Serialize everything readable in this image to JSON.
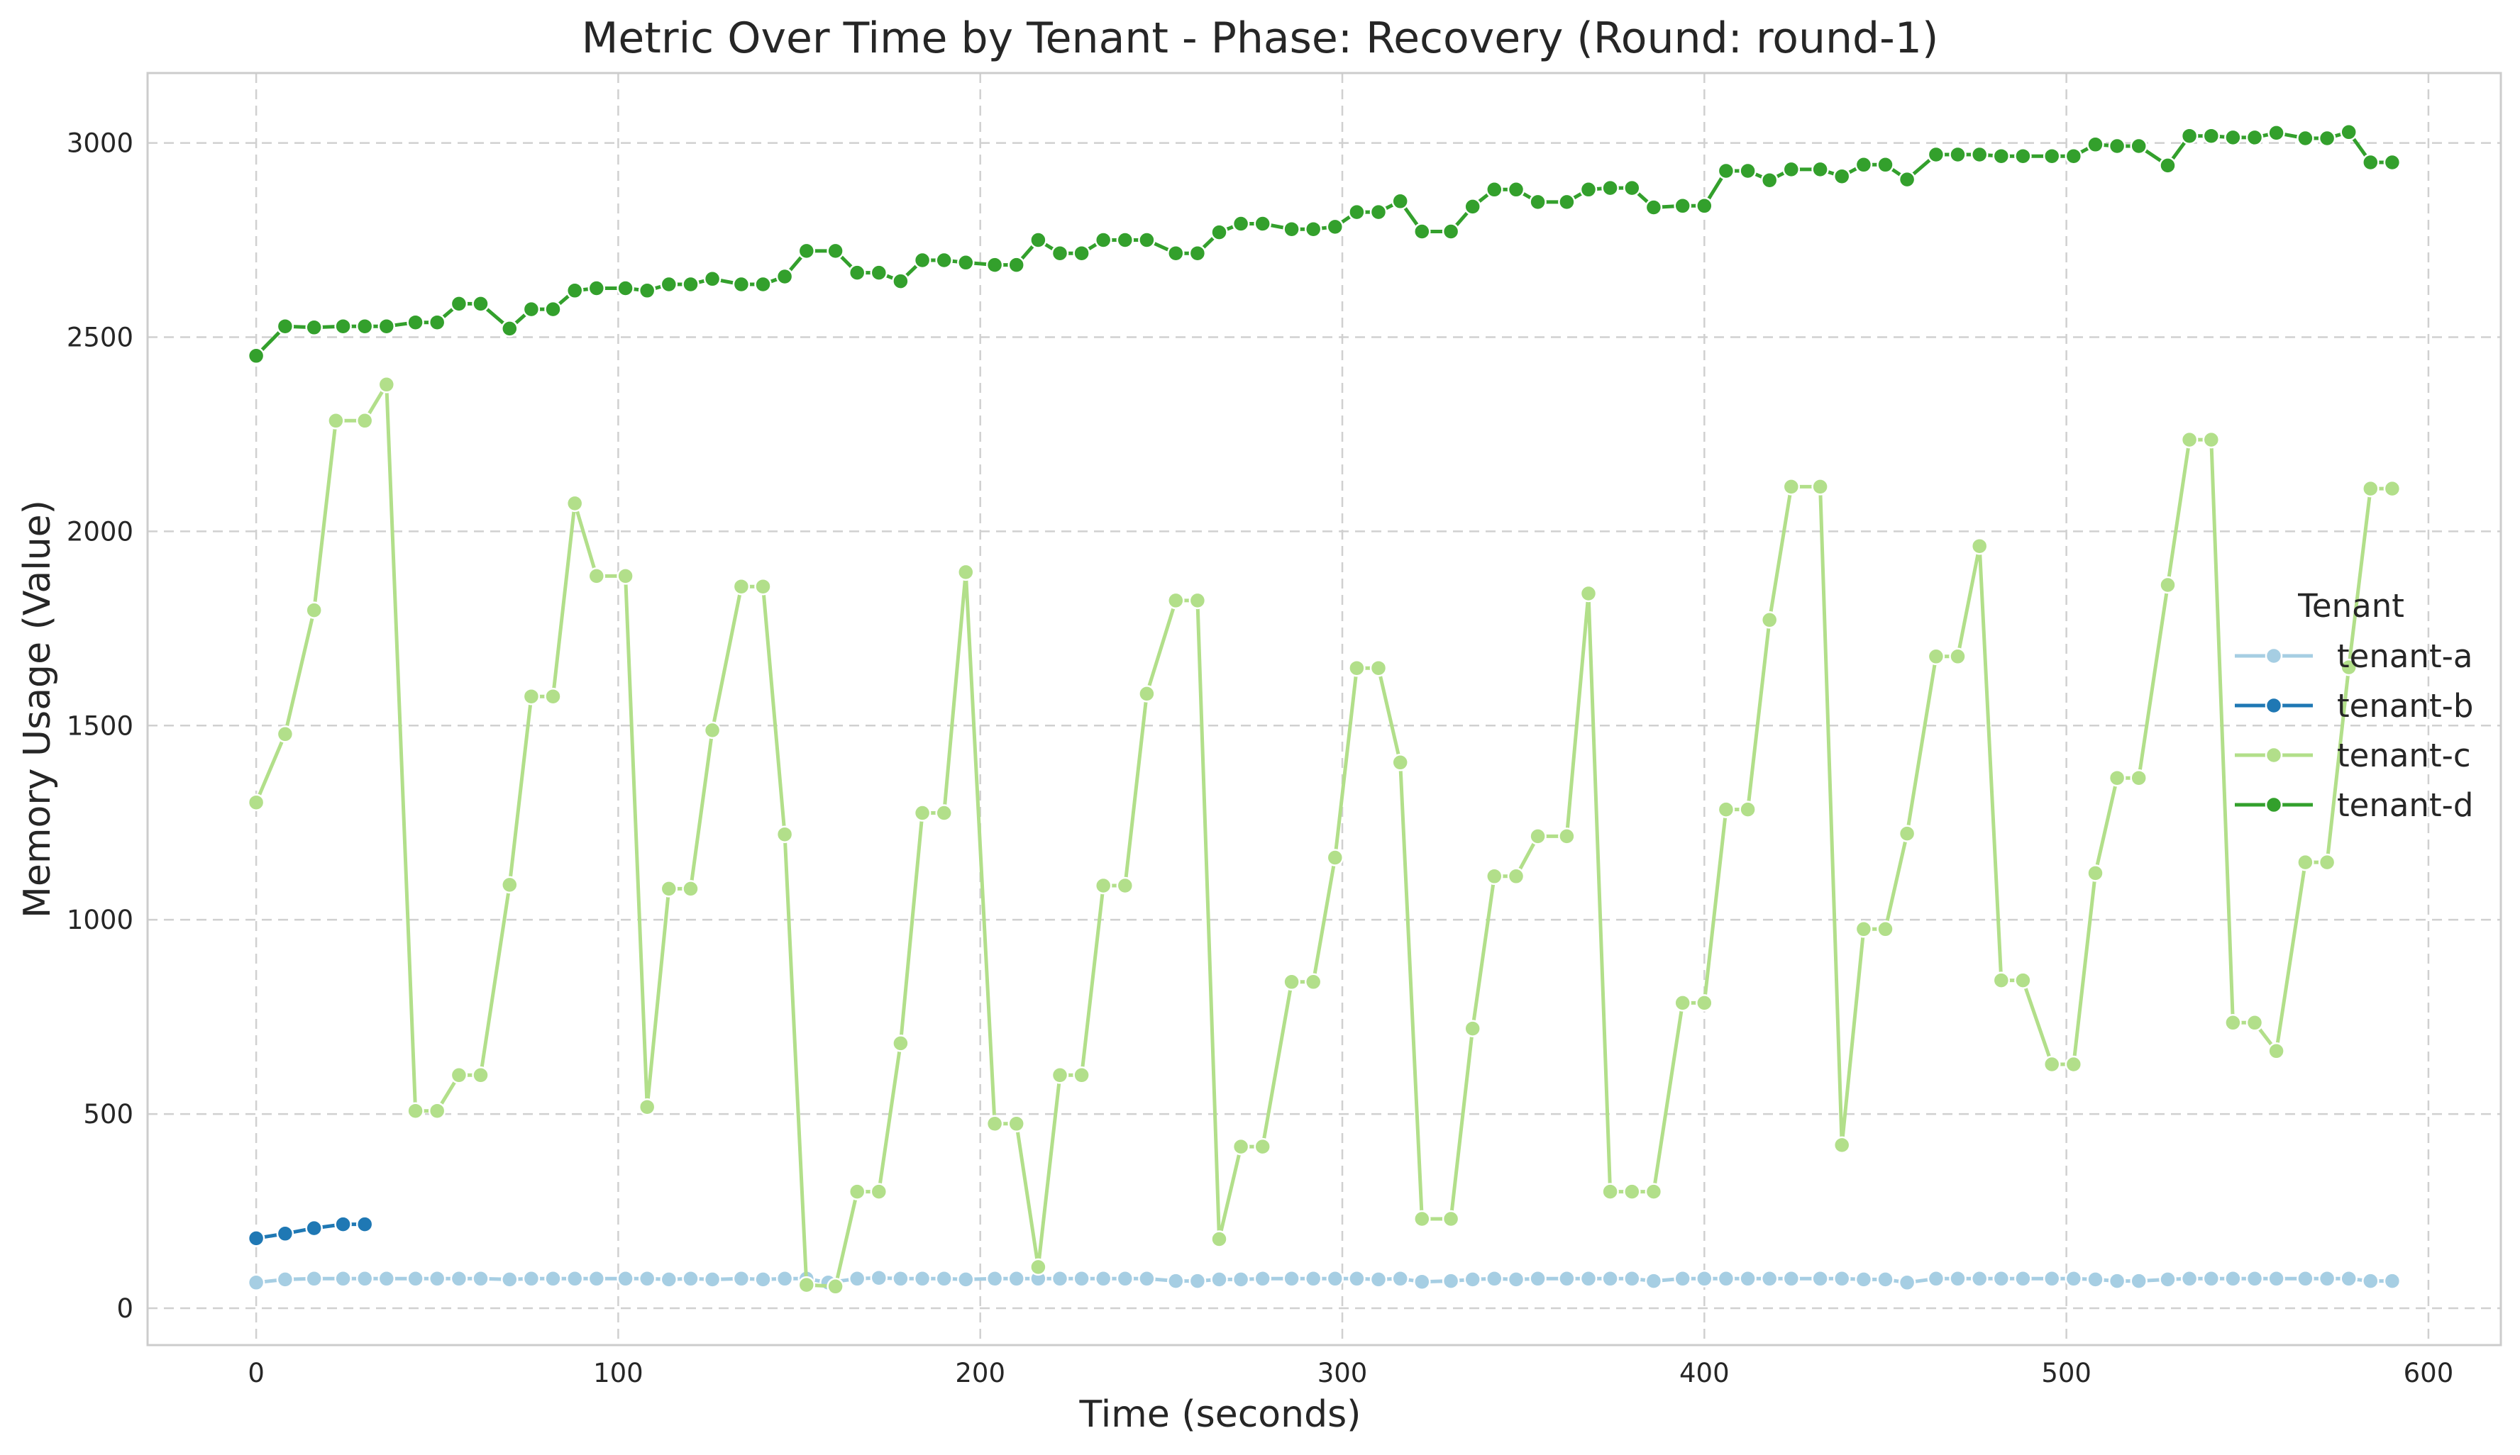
{
  "chart_data": {
    "type": "line",
    "title": "Metric Over Time by Tenant - Phase: Recovery (Round: round-1)",
    "xlabel": "Time (seconds)",
    "ylabel": "Memory Usage (Value)",
    "xlim": [
      -30,
      620
    ],
    "ylim": [
      -95,
      3180
    ],
    "xticks": [
      0,
      100,
      200,
      300,
      400,
      500,
      600
    ],
    "yticks": [
      0,
      500,
      1000,
      1500,
      2000,
      2500,
      3000
    ],
    "grid": true,
    "legend": {
      "title": "Tenant",
      "placement": "center-right"
    },
    "series": [
      {
        "name": "tenant-a",
        "color": "#a6cee3",
        "x": [
          0,
          8,
          16,
          24,
          30,
          36,
          44,
          50,
          56,
          62,
          70,
          76,
          82,
          88,
          94,
          102,
          108,
          114,
          120,
          126,
          134,
          140,
          146,
          152,
          158,
          166,
          172,
          178,
          184,
          190,
          196,
          204,
          210,
          216,
          222,
          228,
          234,
          240,
          246,
          254,
          260,
          266,
          272,
          278,
          286,
          292,
          298,
          304,
          310,
          316,
          322,
          330,
          336,
          342,
          348,
          354,
          362,
          368,
          374,
          380,
          386,
          394,
          400,
          406,
          412,
          418,
          424,
          432,
          438,
          444,
          450,
          456,
          464,
          470,
          476,
          482,
          488,
          496,
          502,
          508,
          514,
          520,
          528,
          534,
          540,
          546,
          552,
          558,
          566,
          572,
          578,
          584,
          590
        ],
        "values": [
          66,
          74,
          76,
          76,
          76,
          76,
          76,
          76,
          76,
          76,
          74,
          76,
          76,
          76,
          76,
          76,
          76,
          74,
          76,
          74,
          76,
          74,
          76,
          76,
          66,
          76,
          78,
          76,
          76,
          76,
          74,
          76,
          76,
          76,
          76,
          76,
          76,
          76,
          76,
          70,
          70,
          74,
          74,
          76,
          76,
          76,
          76,
          76,
          74,
          76,
          68,
          70,
          74,
          76,
          74,
          76,
          76,
          76,
          76,
          76,
          70,
          76,
          76,
          76,
          76,
          76,
          76,
          76,
          76,
          74,
          74,
          66,
          76,
          76,
          76,
          76,
          76,
          76,
          76,
          74,
          70,
          70,
          74,
          76,
          76,
          76,
          76,
          76,
          76,
          76,
          76,
          70,
          70
        ]
      },
      {
        "name": "tenant-b",
        "color": "#1f78b4",
        "x": [
          0,
          8,
          16,
          24,
          30
        ],
        "values": [
          180,
          192,
          206,
          216,
          216
        ]
      },
      {
        "name": "tenant-c",
        "color": "#b2df8a",
        "x": [
          0,
          8,
          16,
          22,
          30,
          36,
          44,
          50,
          56,
          62,
          70,
          76,
          82,
          88,
          94,
          102,
          108,
          114,
          120,
          126,
          134,
          140,
          146,
          152,
          160,
          166,
          172,
          178,
          184,
          190,
          196,
          204,
          210,
          216,
          222,
          228,
          234,
          240,
          246,
          254,
          260,
          266,
          272,
          278,
          286,
          292,
          298,
          304,
          310,
          316,
          322,
          330,
          336,
          342,
          348,
          354,
          362,
          368,
          374,
          380,
          386,
          394,
          400,
          406,
          412,
          418,
          424,
          432,
          438,
          444,
          450,
          456,
          464,
          470,
          476,
          482,
          488,
          496,
          502,
          508,
          514,
          520,
          528,
          534,
          540,
          546,
          552,
          558,
          566,
          572,
          578,
          584,
          590
        ],
        "values": [
          1302,
          1478,
          1797,
          2285,
          2285,
          2378,
          508,
          508,
          600,
          600,
          1090,
          1575,
          1575,
          2072,
          1885,
          1885,
          518,
          1080,
          1080,
          1488,
          1858,
          1858,
          1220,
          60,
          56,
          300,
          300,
          682,
          1275,
          1275,
          1895,
          475,
          475,
          106,
          600,
          600,
          1088,
          1088,
          1582,
          1822,
          1822,
          178,
          416,
          416,
          840,
          840,
          1160,
          1648,
          1648,
          1405,
          230,
          230,
          720,
          1112,
          1112,
          1215,
          1215,
          1840,
          300,
          300,
          300,
          786,
          786,
          1284,
          1284,
          1772,
          2115,
          2115,
          420,
          976,
          976,
          1222,
          1678,
          1678,
          1962,
          844,
          844,
          628,
          628,
          1120,
          1365,
          1365,
          1862,
          2236,
          2236,
          735,
          735,
          662,
          1148,
          1148,
          1650,
          2110,
          2110
        ]
      },
      {
        "name": "tenant-d",
        "color": "#33a02c",
        "x": [
          0,
          8,
          16,
          24,
          30,
          36,
          44,
          50,
          56,
          62,
          70,
          76,
          82,
          88,
          94,
          102,
          108,
          114,
          120,
          126,
          134,
          140,
          146,
          152,
          160,
          166,
          172,
          178,
          184,
          190,
          196,
          204,
          210,
          216,
          222,
          228,
          234,
          240,
          246,
          254,
          260,
          266,
          272,
          278,
          286,
          292,
          298,
          304,
          310,
          316,
          322,
          330,
          336,
          342,
          348,
          354,
          362,
          368,
          374,
          380,
          386,
          394,
          400,
          406,
          412,
          418,
          424,
          432,
          438,
          444,
          450,
          456,
          464,
          470,
          476,
          482,
          488,
          496,
          502,
          508,
          514,
          520,
          528,
          534,
          540,
          546,
          552,
          558,
          566,
          572,
          578,
          584,
          590
        ],
        "values": [
          2452,
          2528,
          2525,
          2528,
          2528,
          2528,
          2538,
          2538,
          2586,
          2586,
          2522,
          2572,
          2572,
          2620,
          2626,
          2626,
          2620,
          2636,
          2636,
          2650,
          2636,
          2636,
          2656,
          2722,
          2722,
          2666,
          2666,
          2644,
          2698,
          2698,
          2692,
          2686,
          2686,
          2750,
          2716,
          2716,
          2750,
          2750,
          2750,
          2716,
          2716,
          2770,
          2792,
          2792,
          2778,
          2778,
          2784,
          2822,
          2822,
          2850,
          2772,
          2772,
          2836,
          2880,
          2880,
          2848,
          2848,
          2880,
          2884,
          2884,
          2834,
          2838,
          2838,
          2928,
          2928,
          2904,
          2932,
          2932,
          2914,
          2944,
          2944,
          2906,
          2970,
          2970,
          2970,
          2966,
          2966,
          2966,
          2966,
          2996,
          2992,
          2992,
          2942,
          3018,
          3018,
          3014,
          3014,
          3026,
          3012,
          3012,
          3028,
          2950,
          2950
        ]
      }
    ]
  }
}
